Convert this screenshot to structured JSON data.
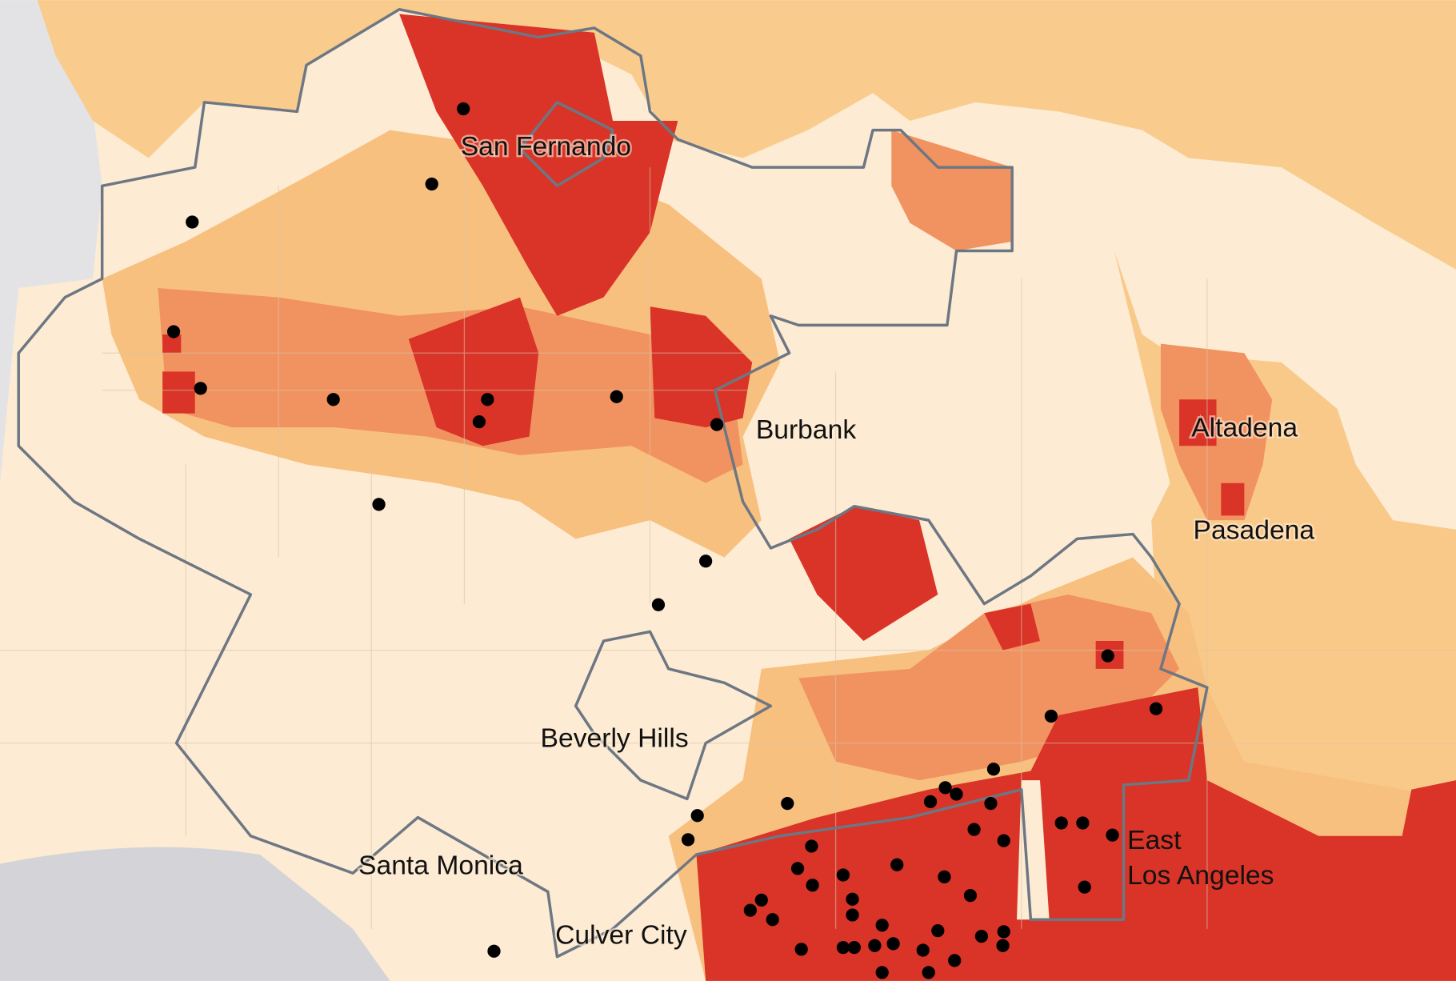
{
  "places": [
    {
      "lines": [
        "San Fernando"
      ]
    },
    {
      "lines": [
        "Burbank"
      ]
    },
    {
      "lines": [
        "Altadena"
      ]
    },
    {
      "lines": [
        "Pasadena"
      ]
    },
    {
      "lines": [
        "Beverly Hills"
      ]
    },
    {
      "lines": [
        "Santa Monica"
      ]
    },
    {
      "lines": [
        "Culver City"
      ]
    },
    {
      "lines": [
        "East",
        "Los Angeles"
      ]
    }
  ]
}
